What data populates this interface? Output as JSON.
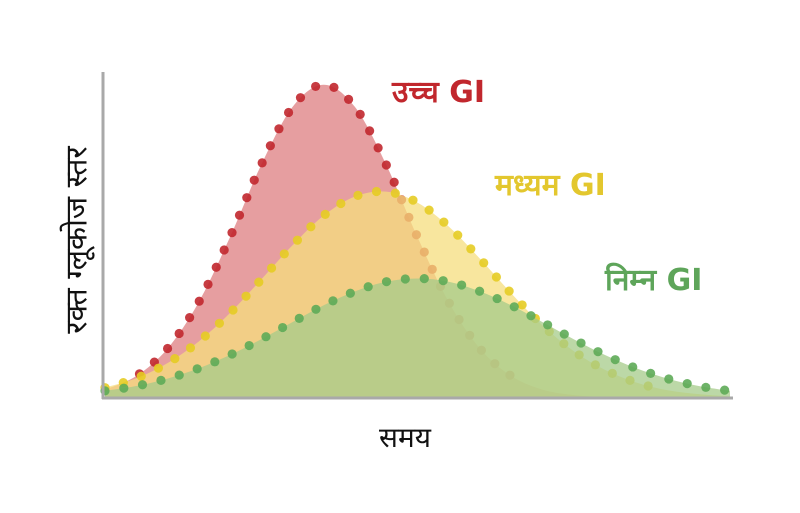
{
  "chart_data": {
    "type": "area",
    "xlabel": "समय",
    "ylabel": "रक्त ग्लूकोज स्तर",
    "x": [
      0,
      5,
      10,
      15,
      20,
      25,
      30,
      35,
      40,
      45,
      50,
      55,
      60,
      65,
      70,
      75,
      80,
      85,
      90,
      95,
      100
    ],
    "series": [
      {
        "name": "उच्च GI",
        "color": "#c1272d",
        "fill": "#dd7d80",
        "values": [
          2.6,
          6.8,
          15.3,
          29.7,
          49.8,
          72.2,
          90.1,
          97,
          90.1,
          72.2,
          49.8,
          29.7,
          15.3,
          6.8,
          2.6,
          0.9,
          0.3,
          0,
          0,
          0,
          0
        ]
      },
      {
        "name": "मध्यम GI",
        "color": "#e6cc24",
        "fill": "#f6de7e",
        "values": [
          3.2,
          6.1,
          10.8,
          17.5,
          26.3,
          36.7,
          47.3,
          56.5,
          62.4,
          63.9,
          60.5,
          53.1,
          43.1,
          32.4,
          22.5,
          14.5,
          8.7,
          4.8,
          2.4,
          1.2,
          0.5
        ]
      },
      {
        "name": "निम्न GI",
        "color": "#5eab58",
        "fill": "#a5cb8a",
        "values": [
          2.2,
          3.7,
          6.0,
          9.2,
          13.3,
          18.2,
          23.5,
          28.7,
          33.0,
          36.0,
          37,
          36.0,
          33.0,
          28.7,
          23.5,
          18.2,
          13.3,
          9.2,
          6.0,
          3.7,
          2.2
        ]
      }
    ],
    "legend": "inline labels near curves",
    "grid": false,
    "axis_ticks": false
  }
}
